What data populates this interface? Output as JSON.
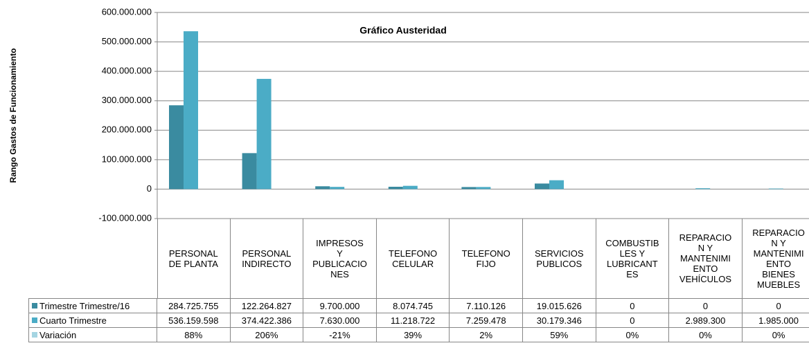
{
  "chart_data": {
    "type": "bar",
    "title": "Gráfico Austeridad",
    "y_label": "Rango  Gastos de Funcionamiento",
    "categories": [
      "PERSONAL DE PLANTA",
      "PERSONAL INDIRECTO",
      "IMPRESOS Y PUBLICACIONES",
      "TELEFONO CELULAR",
      "TELEFONO FIJO",
      "SERVICIOS PUBLICOS",
      "COMBUSTIBLES Y LUBRICANTES",
      "REPARACION Y MANTENIMIENTO VEHÍCULOS",
      "REPARACION Y MANTENIMIENTO BIENES MUEBLES"
    ],
    "series": [
      {
        "name": "Trimestre Trimestre/16",
        "color": "#3a8ba0",
        "values": [
          284725755,
          122264827,
          9700000,
          8074745,
          7110126,
          19015626,
          0,
          0,
          0
        ],
        "value_labels": [
          "284.725.755",
          "122.264.827",
          "9.700.000",
          "8.074.745",
          "7.110.126",
          "19.015.626",
          "0",
          "0",
          "0"
        ]
      },
      {
        "name": "Cuarto Trimestre",
        "color": "#4bacc6",
        "values": [
          536159598,
          374422386,
          7630000,
          11218722,
          7259478,
          30179346,
          0,
          2989300,
          1985000
        ],
        "value_labels": [
          "536.159.598",
          "374.422.386",
          "7.630.000",
          "11.218.722",
          "7.259.478",
          "30.179.346",
          "0",
          "2.989.300",
          "1.985.000"
        ]
      },
      {
        "name": "Variación",
        "color": "#a5d5e2",
        "values": [
          88,
          206,
          -21,
          39,
          2,
          59,
          0,
          0,
          0
        ],
        "value_labels": [
          "88%",
          "206%",
          "-21%",
          "39%",
          "2%",
          "59%",
          "0%",
          "0%",
          "0%"
        ]
      }
    ],
    "ylim": [
      -100000000,
      600000000
    ],
    "yticks": [
      {
        "value": -100000000,
        "label": "-100.000.000"
      },
      0,
      {
        "value": 100000000,
        "label": "100.000.000"
      },
      {
        "value": 200000000,
        "label": "200.000.000"
      },
      {
        "value": 300000000,
        "label": "300.000.000"
      },
      {
        "value": 400000000,
        "label": "400.000.000"
      },
      {
        "value": 500000000,
        "label": "500.000.000"
      },
      {
        "value": 600000000,
        "label": "600.000.000"
      }
    ],
    "grid": true
  }
}
